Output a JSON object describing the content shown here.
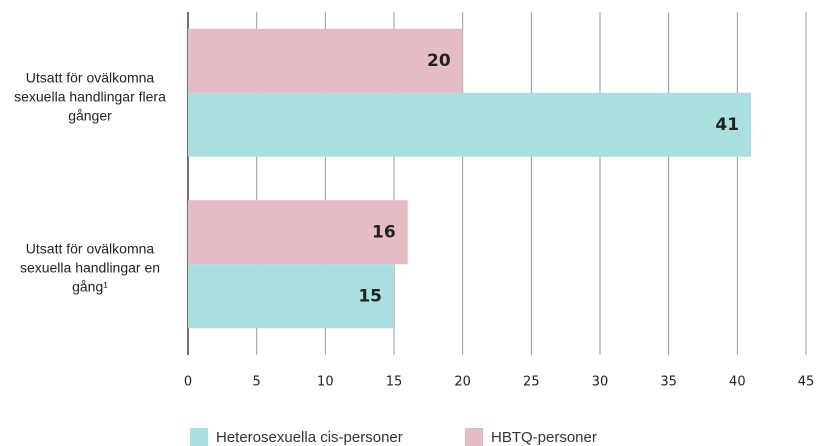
{
  "chart_data": {
    "type": "barh",
    "categories": [
      "Utsatt för ovälkomna sexuella handlingar flera gånger",
      "Utsatt för ovälkomna sexuella handlingar en gång¹"
    ],
    "series": [
      {
        "name": "Heterosexuella cis-personer",
        "color": "#aadedf",
        "label_color": "#123f66",
        "values": [
          41,
          15
        ]
      },
      {
        "name": "HBTQ-personer",
        "color": "#e6bcc4",
        "label_color": "#6e0c3c",
        "values": [
          20,
          16
        ]
      }
    ],
    "xlim": [
      0,
      45
    ],
    "xticks": [
      0,
      5,
      10,
      15,
      20,
      25,
      30,
      35,
      40,
      45
    ],
    "grid": true
  }
}
